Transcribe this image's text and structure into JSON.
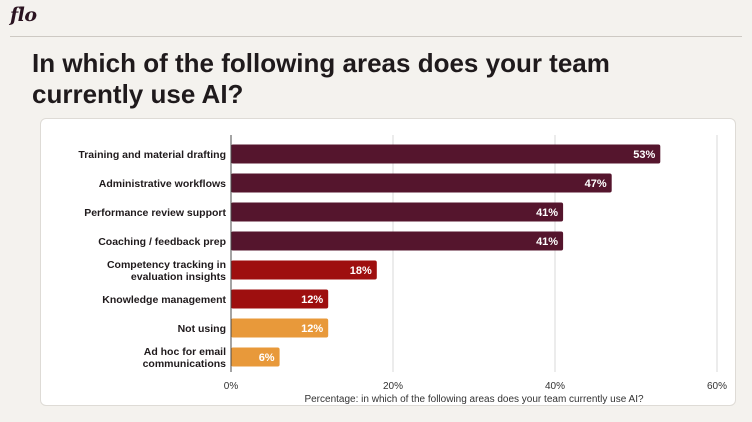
{
  "brand": {
    "logo_text": "flo"
  },
  "page": {
    "title": "In which of the following areas does your team currently use AI?"
  },
  "chart_data": {
    "type": "bar",
    "orientation": "horizontal",
    "categories": [
      [
        "Training and material drafting"
      ],
      [
        "Administrative workflows"
      ],
      [
        "Performance review support"
      ],
      [
        "Coaching / feedback prep"
      ],
      [
        "Competency tracking in",
        "evaluation insights"
      ],
      [
        "Knowledge management"
      ],
      [
        "Not using"
      ],
      [
        "Ad hoc for email",
        "communications"
      ]
    ],
    "values": [
      53,
      47,
      41,
      41,
      18,
      12,
      12,
      6
    ],
    "value_labels": [
      "53%",
      "47%",
      "41%",
      "41%",
      "18%",
      "12%",
      "12%",
      "6%"
    ],
    "bar_colors": [
      "#55152d",
      "#55152d",
      "#55152d",
      "#55152d",
      "#9e0f0f",
      "#9e0f0f",
      "#e8993a",
      "#e8993a"
    ],
    "xlim": [
      0,
      60
    ],
    "x_ticks": [
      0,
      20,
      40,
      60
    ],
    "x_tick_labels": [
      "0%",
      "20%",
      "40%",
      "60%"
    ],
    "xlabel": "Percentage: in which of the following areas does your team currently use AI?",
    "ylabel": "",
    "grid": true
  }
}
